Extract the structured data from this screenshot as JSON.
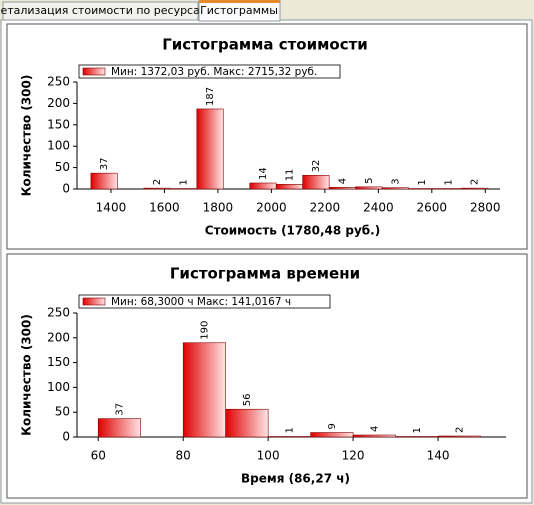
{
  "tabs": [
    "Детализация стоимости по ресурсам",
    "Гистограммы"
  ],
  "chart_data": [
    {
      "type": "histogram",
      "title": "Гистограмма стоимости",
      "xlabel": "Стоимость (1780,48 руб.)",
      "ylabel": "Количество (300)",
      "bins": [
        1325,
        1424,
        1523,
        1622,
        1721,
        1820,
        1919,
        2018,
        2117,
        2216,
        2315,
        2414,
        2513,
        2612,
        2711,
        2810
      ],
      "series": [
        {
          "name": "Мин: 1372,03 руб. Макс: 2715,32 руб.",
          "color": "#e00000",
          "values": [
            37,
            0,
            2,
            1,
            187,
            0,
            14,
            11,
            32,
            4,
            5,
            3,
            1,
            1,
            2
          ]
        }
      ],
      "xlim": [
        1273,
        2855
      ],
      "xticks": [
        1400,
        1600,
        1800,
        2000,
        2200,
        2400,
        2600,
        2800
      ],
      "ylim": [
        0,
        250
      ],
      "yticks": [
        0,
        50,
        100,
        150,
        200,
        250
      ]
    },
    {
      "type": "histogram",
      "title": "Гистограмма времени",
      "xlabel": "Время (86,27 ч)",
      "ylabel": "Количество (300)",
      "bins": [
        60,
        70,
        80,
        90,
        100,
        110,
        120,
        130,
        140,
        150
      ],
      "series": [
        {
          "name": "Мин: 68,3000 ч Макс: 141,0167 ч",
          "color": "#e00000",
          "values": [
            37,
            0,
            190,
            56,
            1,
            9,
            4,
            1,
            2
          ]
        }
      ],
      "xlim": [
        55,
        156
      ],
      "xticks": [
        60,
        80,
        100,
        120,
        140
      ],
      "ylim": [
        0,
        250
      ],
      "yticks": [
        0,
        50,
        100,
        150,
        200,
        250
      ]
    }
  ]
}
